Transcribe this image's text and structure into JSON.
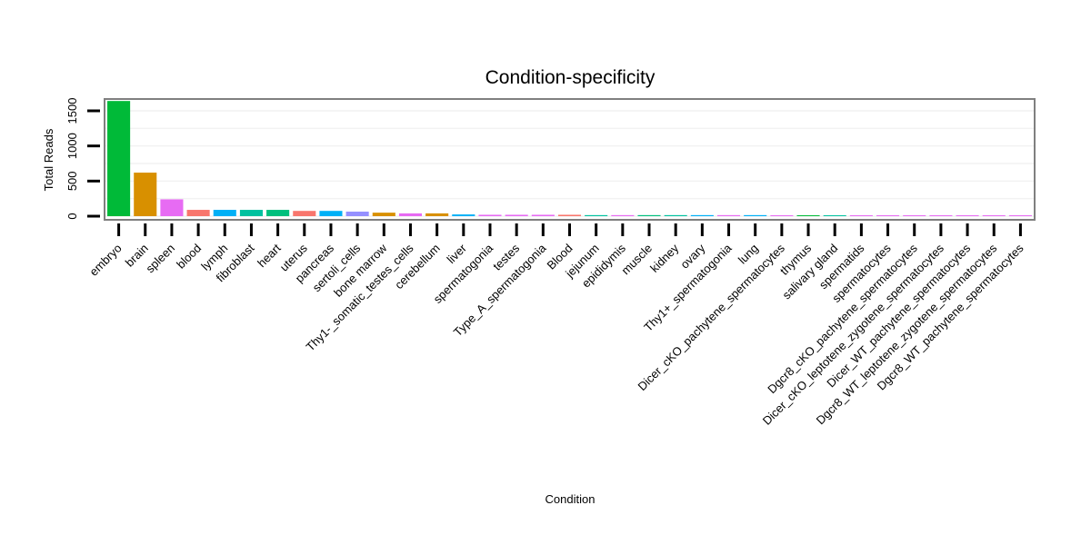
{
  "chart_data": {
    "type": "bar",
    "title": "Condition-specificity",
    "xlabel": "Condition",
    "ylabel": "Total Reads",
    "ylim": [
      0,
      1700
    ],
    "yticks": [
      0,
      500,
      1000,
      1500
    ],
    "ytick_labels": [
      "0",
      "500",
      "1000",
      "1500"
    ],
    "grid": true,
    "legend": "none",
    "categories": [
      "embryo",
      "brain",
      "spleen",
      "blood",
      "lymph",
      "fibroblast",
      "heart",
      "uterus",
      "pancreas",
      "sertoli_cells",
      "bone marrow",
      "Thy1-_somatic_testes_cells",
      "cerebellum",
      "liver",
      "spermatogonia",
      "testes",
      "Type_A_spermatogonia",
      "Blood",
      "jejunum",
      "epididymis",
      "muscle",
      "kidney",
      "ovary",
      "Thy1+_spermatogonia",
      "lung",
      "Dicer_cKO_pachytene_spermatocytes",
      "thymus",
      "salivary gland",
      "spermatids",
      "spermatocytes",
      "Dgcr8_cKO_pachytene_spermatocytes",
      "Dicer_cKO_leptotene_zygotene_spermatocytes",
      "Dicer_WT_pachytene_spermatocytes",
      "Dgcr8_WT_leptotene_zygotene_spermatocytes",
      "Dgcr8_WT_pachytene_spermatocytes"
    ],
    "values": [
      1640,
      620,
      240,
      90,
      90,
      90,
      90,
      75,
      75,
      65,
      50,
      40,
      40,
      25,
      20,
      20,
      20,
      20,
      15,
      15,
      15,
      15,
      15,
      15,
      15,
      12,
      12,
      12,
      10,
      8,
      3,
      2,
      2,
      1,
      1
    ],
    "colors": [
      "#00BA38",
      "#D89000",
      "#E76BF3",
      "#F8766D",
      "#00B0F6",
      "#00C19F",
      "#00BF7D",
      "#F8766D",
      "#00B0F6",
      "#9590FF",
      "#D89000",
      "#E76BF3",
      "#D89000",
      "#00B0F6",
      "#E76BF3",
      "#E76BF3",
      "#E76BF3",
      "#F8766D",
      "#00C19F",
      "#E76BF3",
      "#00BF7D",
      "#00C19F",
      "#00B0F6",
      "#E76BF3",
      "#00B0F6",
      "#E76BF3",
      "#00BA38",
      "#00C19F",
      "#E76BF3",
      "#E76BF3",
      "#E76BF3",
      "#E76BF3",
      "#E76BF3",
      "#E76BF3",
      "#E76BF3"
    ]
  }
}
